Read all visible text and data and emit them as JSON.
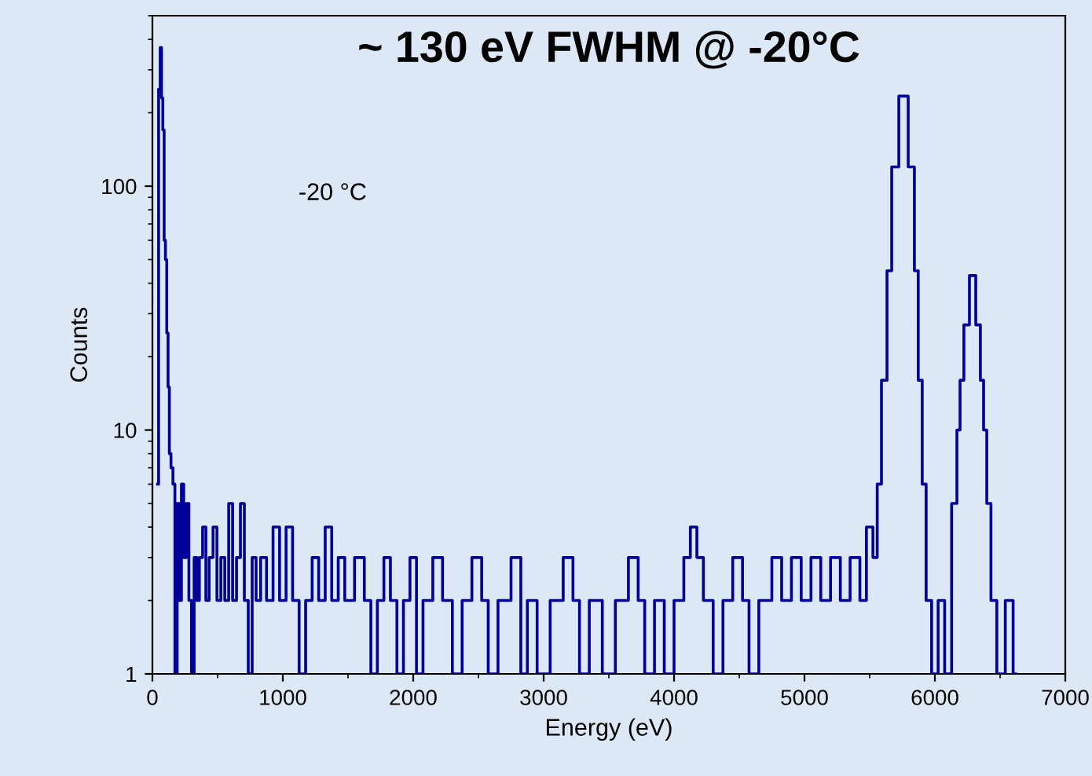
{
  "chart_data": {
    "type": "step",
    "title": "~ 130 eV FWHM @ -20°C",
    "xlabel": "Energy (eV)",
    "ylabel": "Counts",
    "annotations": [
      "-20 °C"
    ],
    "x": [
      40,
      55,
      65,
      75,
      85,
      95,
      105,
      115,
      125,
      135,
      150,
      165,
      180,
      200,
      215,
      230,
      250,
      270,
      290,
      310,
      330,
      350,
      370,
      400,
      420,
      450,
      480,
      510,
      540,
      570,
      600,
      630,
      660,
      690,
      720,
      750,
      780,
      810,
      850,
      900,
      950,
      1000,
      1050,
      1100,
      1150,
      1200,
      1250,
      1300,
      1350,
      1400,
      1450,
      1500,
      1600,
      1650,
      1700,
      1750,
      1800,
      1850,
      1900,
      1950,
      2000,
      2050,
      2100,
      2200,
      2250,
      2350,
      2400,
      2500,
      2550,
      2600,
      2700,
      2800,
      2850,
      2900,
      3000,
      3100,
      3200,
      3250,
      3300,
      3400,
      3500,
      3600,
      3700,
      3750,
      3800,
      3900,
      3950,
      4050,
      4100,
      4150,
      4200,
      4250,
      4350,
      4400,
      4500,
      4550,
      4600,
      4700,
      4800,
      4850,
      4950,
      5000,
      5100,
      5150,
      5250,
      5300,
      5400,
      5450,
      5500,
      5550,
      5566,
      5615,
      5651,
      5687,
      5760,
      5831,
      5855,
      5890,
      5916,
      5950,
      6000,
      6050,
      6100,
      6157,
      6181,
      6205,
      6240,
      6290,
      6337,
      6361,
      6386,
      6410,
      6450,
      6500,
      6580,
      6620
    ],
    "series": [
      {
        "color": "#000099",
        "values": [
          6,
          250,
          370,
          230,
          170,
          60,
          50,
          25,
          15,
          8,
          7,
          6,
          1,
          5,
          2,
          6,
          3,
          5,
          2,
          1,
          3,
          2,
          3,
          4,
          2,
          3,
          4,
          2,
          3,
          2,
          5,
          2,
          3,
          5,
          2,
          1,
          3,
          2,
          3,
          2,
          4,
          2,
          4,
          2,
          1,
          2,
          3,
          2,
          4,
          2,
          3,
          2,
          3,
          2,
          1,
          2,
          3,
          2,
          1,
          2,
          3,
          1,
          2,
          3,
          2,
          1,
          2,
          3,
          2,
          1,
          2,
          3,
          1,
          2,
          1,
          2,
          3,
          2,
          1,
          2,
          1,
          2,
          3,
          2,
          1,
          2,
          1,
          2,
          3,
          4,
          3,
          2,
          1,
          2,
          3,
          2,
          1,
          2,
          3,
          2,
          3,
          2,
          3,
          2,
          3,
          2,
          3,
          2,
          4,
          3,
          6,
          16,
          45,
          120,
          234,
          120,
          45,
          16,
          6,
          2,
          1,
          2,
          1,
          5,
          10,
          16,
          27,
          43,
          27,
          16,
          10,
          5,
          2,
          1,
          2,
          1
        ]
      }
    ],
    "xlim": [
      0,
      7000
    ],
    "xticks": [
      0,
      1000,
      2000,
      3000,
      4000,
      5000,
      6000,
      7000
    ],
    "ylim": [
      1,
      500
    ],
    "yticks": [
      1,
      10,
      100
    ],
    "log": "y",
    "grid": false,
    "legend": false
  }
}
